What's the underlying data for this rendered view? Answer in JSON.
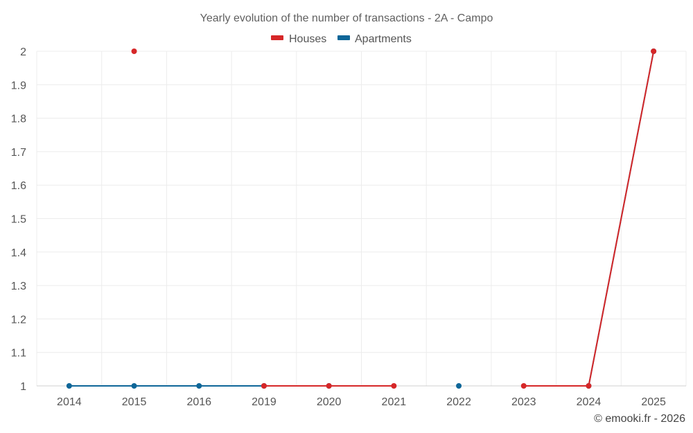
{
  "chart_data": {
    "type": "line",
    "title": "Yearly evolution of the number of transactions - 2A - Campo",
    "categories": [
      "2014",
      "2015",
      "2016",
      "2019",
      "2020",
      "2021",
      "2022",
      "2023",
      "2024",
      "2025"
    ],
    "ylim": [
      1,
      2
    ],
    "yticks": [
      1,
      1.1,
      1.2,
      1.3,
      1.4,
      1.5,
      1.6,
      1.7,
      1.8,
      1.9,
      2
    ],
    "ytick_labels": [
      "1",
      "1.1",
      "1.2",
      "1.3",
      "1.4",
      "1.5",
      "1.6",
      "1.7",
      "1.8",
      "1.9",
      "2"
    ],
    "grid": true,
    "legend_position": "top-center",
    "series": [
      {
        "name": "Houses",
        "color": "#d62728",
        "values": [
          null,
          2,
          null,
          1,
          1,
          1,
          null,
          1,
          1,
          2
        ]
      },
      {
        "name": "Apartments",
        "color": "#0e6698",
        "values": [
          1,
          1,
          1,
          1,
          1,
          null,
          1,
          null,
          1,
          2
        ]
      }
    ],
    "draw_order": [
      1,
      0
    ]
  },
  "credit": "© emooki.fr - 2026"
}
